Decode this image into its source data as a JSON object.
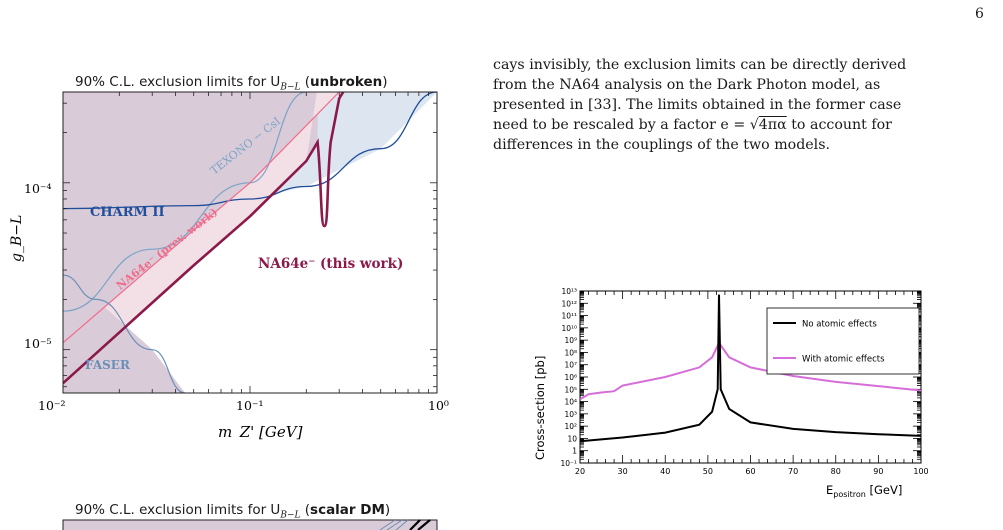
{
  "page_number": "6",
  "text": {
    "line1": "cays invisibly, the exclusion limits can be directly derived",
    "line2": "from the NA64 analysis on the Dark Photon model, as",
    "line3": "presented in [33]. The limits obtained in the former case",
    "line4a": "need to be rescaled by a factor e = ",
    "line4b": "4πα",
    "line4c": " to account for",
    "line5": "differences in the couplings of the two models."
  },
  "fig1": {
    "title_pre": "90% C.L. exclusion limits for U",
    "title_sub": "B−L",
    "title_mid": " (",
    "title_bold": "unbroken",
    "title_post": ")",
    "region_labels": {
      "charm": "CHARM II",
      "texono": "TEXONO − CsI",
      "prev": "NA64e⁻ (prev. work)",
      "this": "NA64e⁻ (this work)",
      "faser": "FASER"
    },
    "colors": {
      "this": "#8b1a4a",
      "prev": "#f26b8a",
      "charm": "#1f4e9a",
      "texono": "#7ba3c8",
      "faser": "#6b8fb8",
      "excluded_fill": "#d9cbd8",
      "charm_fill": "#dde6f0"
    }
  },
  "fig2": {
    "title_pre": "90% C.L. exclusion limits for U",
    "title_sub": "B−L",
    "title_mid": " (",
    "title_bold": "scalar DM",
    "title_post": ")"
  },
  "chart_data": [
    {
      "type": "line",
      "title": "90% C.L. exclusion limits for U_B−L (unbroken)",
      "xlabel": "m_Z' [GeV]",
      "ylabel": "g_B−L",
      "xscale": "log",
      "yscale": "log",
      "xlim": [
        0.01,
        1.0
      ],
      "ylim": [
        5.5e-06,
        0.00035
      ],
      "x_tick_labels": [
        "10⁻²",
        "10⁻¹",
        "10⁰"
      ],
      "y_tick_labels": [
        "10⁻⁵",
        "10⁻⁴"
      ],
      "series": [
        {
          "name": "NA64e⁻ (this work)",
          "x": [
            0.01,
            0.05,
            0.1,
            0.2,
            0.23,
            0.25,
            0.27,
            0.3,
            0.34
          ],
          "y": [
            6.3e-06,
            3.2e-05,
            6.3e-05,
            0.000135,
            0.000175,
            5.5e-05,
            0.000175,
            0.00032,
            0.00035
          ]
        },
        {
          "name": "NA64e⁻ (prev. work)",
          "x": [
            0.01,
            0.05,
            0.1,
            0.3
          ],
          "y": [
            1.1e-05,
            5.2e-05,
            0.0001,
            0.00035
          ]
        },
        {
          "name": "CHARM II",
          "x": [
            0.01,
            0.05,
            0.1,
            0.2,
            0.5,
            1.0
          ],
          "y": [
            7e-05,
            7.3e-05,
            8e-05,
            9.5e-05,
            0.00016,
            0.00035
          ]
        },
        {
          "name": "TEXONO − CsI",
          "x": [
            0.01,
            0.03,
            0.1,
            0.2
          ],
          "y": [
            1.7e-05,
            4e-05,
            0.0001,
            0.00035
          ]
        },
        {
          "name": "FASER",
          "x": [
            0.01,
            0.015,
            0.03,
            0.045
          ],
          "y": [
            2.8e-05,
            2e-05,
            1e-05,
            5.5e-06
          ]
        }
      ]
    },
    {
      "type": "line",
      "xlabel": "E_positron [GeV]",
      "ylabel": "Cross-section [pb]",
      "yscale": "log",
      "xlim": [
        20,
        100
      ],
      "ylim": [
        0.1,
        10000000000000.0
      ],
      "x_tick_labels": [
        "20",
        "30",
        "40",
        "50",
        "60",
        "70",
        "80",
        "90",
        "100"
      ],
      "y_tick_labels": [
        "10⁻¹",
        "1",
        "10",
        "10²",
        "10³",
        "10⁴",
        "10⁵",
        "10⁶",
        "10⁷",
        "10⁸",
        "10⁹",
        "10¹⁰",
        "10¹¹",
        "10¹²",
        "10¹³"
      ],
      "legend": "top-right",
      "series": [
        {
          "name": "No atomic effects",
          "color": "#000000",
          "x": [
            20,
            30,
            40,
            48,
            51,
            52.3,
            52.6,
            53,
            55,
            60,
            70,
            80,
            90,
            100
          ],
          "y": [
            6,
            12,
            30,
            130,
            1500,
            100000,
            5000000000000.0,
            100000,
            2500,
            200,
            60,
            33,
            22,
            16
          ]
        },
        {
          "name": "With atomic effects",
          "color": "#d56ed9",
          "x": [
            20,
            22,
            25,
            28,
            30,
            40,
            48,
            51,
            52.6,
            55,
            60,
            70,
            80,
            90,
            100
          ],
          "y": [
            15000,
            40000,
            55000,
            70000,
            200000,
            1000000,
            6000000,
            40000000,
            600000000,
            40000000,
            6000000,
            1200000,
            400000,
            180000,
            80000
          ]
        }
      ]
    }
  ]
}
